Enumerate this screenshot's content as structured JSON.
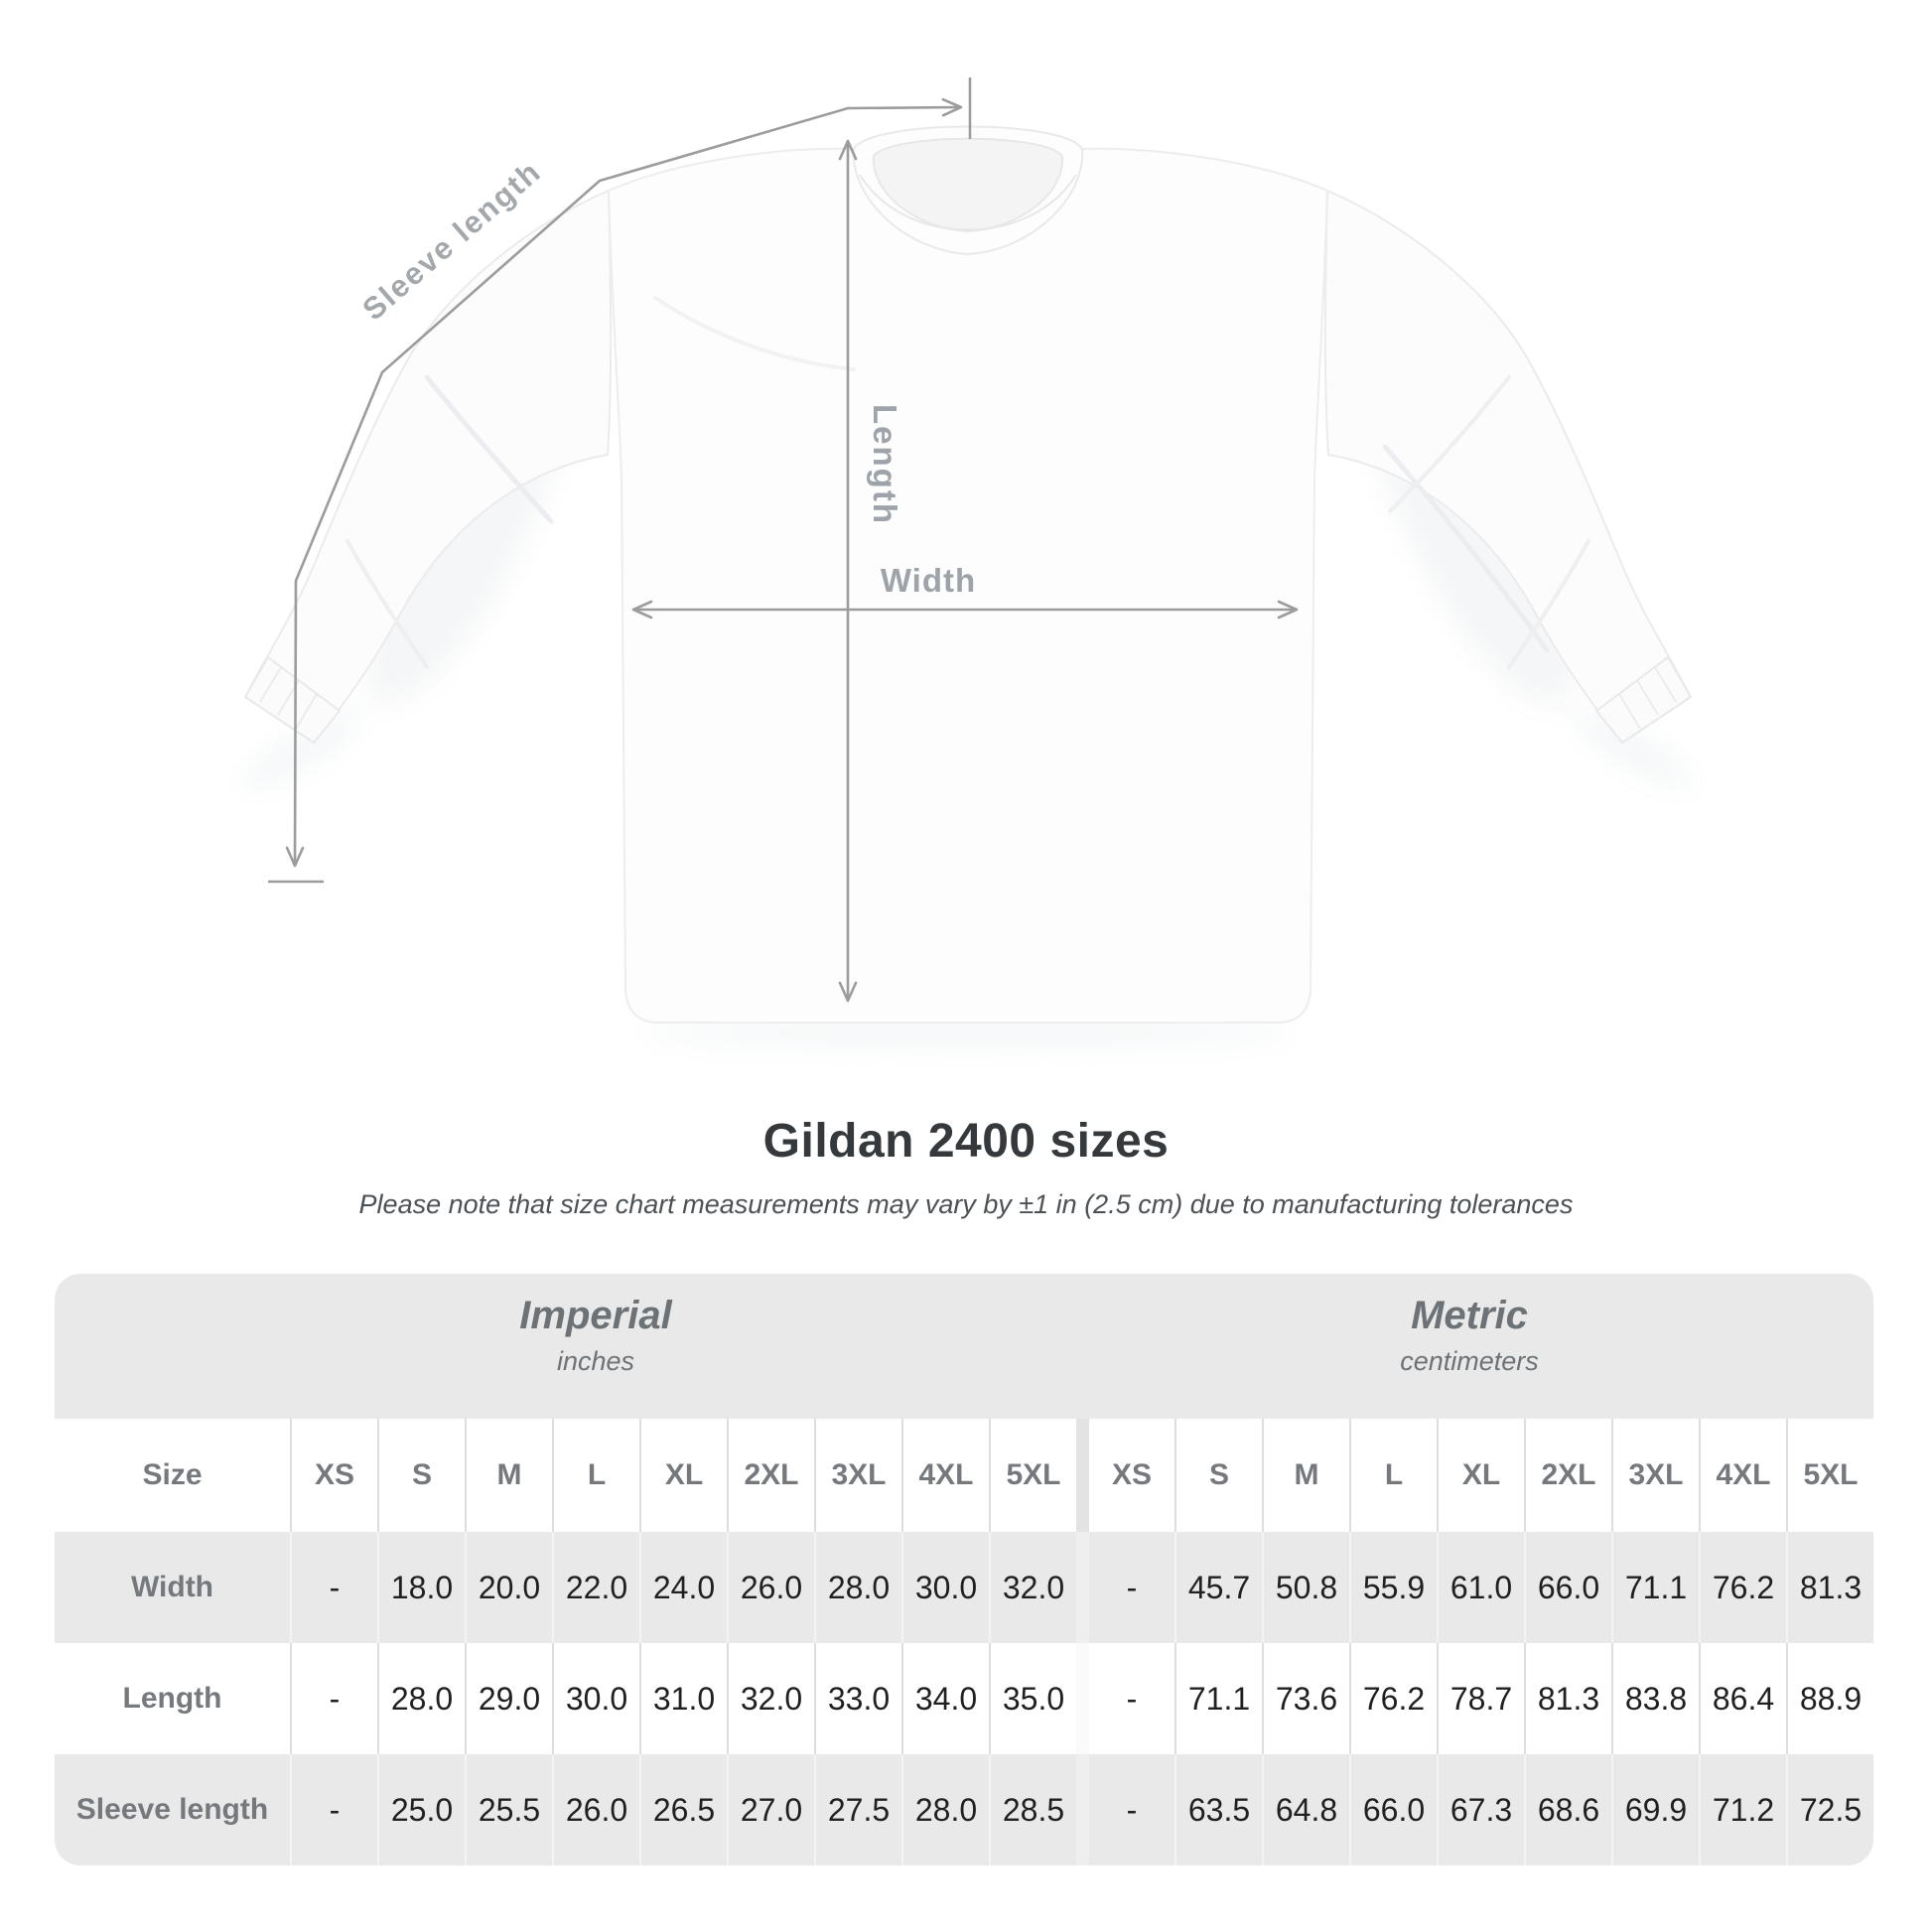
{
  "figure": {
    "sleeve_label": "Sleeve length",
    "length_label": "Length",
    "width_label": "Width"
  },
  "title": "Gildan 2400 sizes",
  "subtitle": "Please note that size chart measurements may vary by ±1 in (2.5 cm) due to manufacturing tolerances",
  "table": {
    "unit_groups": [
      {
        "title": "Imperial",
        "subtitle": "inches"
      },
      {
        "title": "Metric",
        "subtitle": "centimeters"
      }
    ],
    "size_column_label": "Size",
    "size_labels": [
      "XS",
      "S",
      "M",
      "L",
      "XL",
      "2XL",
      "3XL",
      "4XL",
      "5XL"
    ],
    "rows": [
      {
        "label": "Width",
        "imperial": [
          "-",
          "18.0",
          "20.0",
          "22.0",
          "24.0",
          "26.0",
          "28.0",
          "30.0",
          "32.0"
        ],
        "metric": [
          "-",
          "45.7",
          "50.8",
          "55.9",
          "61.0",
          "66.0",
          "71.1",
          "76.2",
          "81.3"
        ]
      },
      {
        "label": "Length",
        "imperial": [
          "-",
          "28.0",
          "29.0",
          "30.0",
          "31.0",
          "32.0",
          "33.0",
          "34.0",
          "35.0"
        ],
        "metric": [
          "-",
          "71.1",
          "73.6",
          "76.2",
          "78.7",
          "81.3",
          "83.8",
          "86.4",
          "88.9"
        ]
      },
      {
        "label": "Sleeve length",
        "imperial": [
          "-",
          "25.0",
          "25.5",
          "26.0",
          "26.5",
          "27.0",
          "27.5",
          "28.0",
          "28.5"
        ],
        "metric": [
          "-",
          "63.5",
          "64.8",
          "66.0",
          "67.3",
          "68.6",
          "69.9",
          "71.2",
          "72.5"
        ]
      }
    ]
  },
  "chart_data": {
    "type": "table",
    "title": "Gildan 2400 sizes",
    "note": "Please note that size chart measurements may vary by ±1 in (2.5 cm) due to manufacturing tolerances",
    "column_groups": [
      "Imperial (inches)",
      "Metric (centimeters)"
    ],
    "columns": [
      "Size",
      "XS",
      "S",
      "M",
      "L",
      "XL",
      "2XL",
      "3XL",
      "4XL",
      "5XL",
      "XS",
      "S",
      "M",
      "L",
      "XL",
      "2XL",
      "3XL",
      "4XL",
      "5XL"
    ],
    "rows": [
      [
        "Width",
        "-",
        18.0,
        20.0,
        22.0,
        24.0,
        26.0,
        28.0,
        30.0,
        32.0,
        "-",
        45.7,
        50.8,
        55.9,
        61.0,
        66.0,
        71.1,
        76.2,
        81.3
      ],
      [
        "Length",
        "-",
        28.0,
        29.0,
        30.0,
        31.0,
        32.0,
        33.0,
        34.0,
        35.0,
        "-",
        71.1,
        73.6,
        76.2,
        78.7,
        81.3,
        83.8,
        86.4,
        88.9
      ],
      [
        "Sleeve length",
        "-",
        25.0,
        25.5,
        26.0,
        26.5,
        27.0,
        27.5,
        28.0,
        28.5,
        "-",
        63.5,
        64.8,
        66.0,
        67.3,
        68.6,
        69.9,
        71.2,
        72.5
      ]
    ]
  },
  "colors": {
    "accent_gray_band": "#e9e9e9",
    "data_text": "#1f2022",
    "label_text": "#75797d",
    "arrow": "#9c9c9c"
  }
}
